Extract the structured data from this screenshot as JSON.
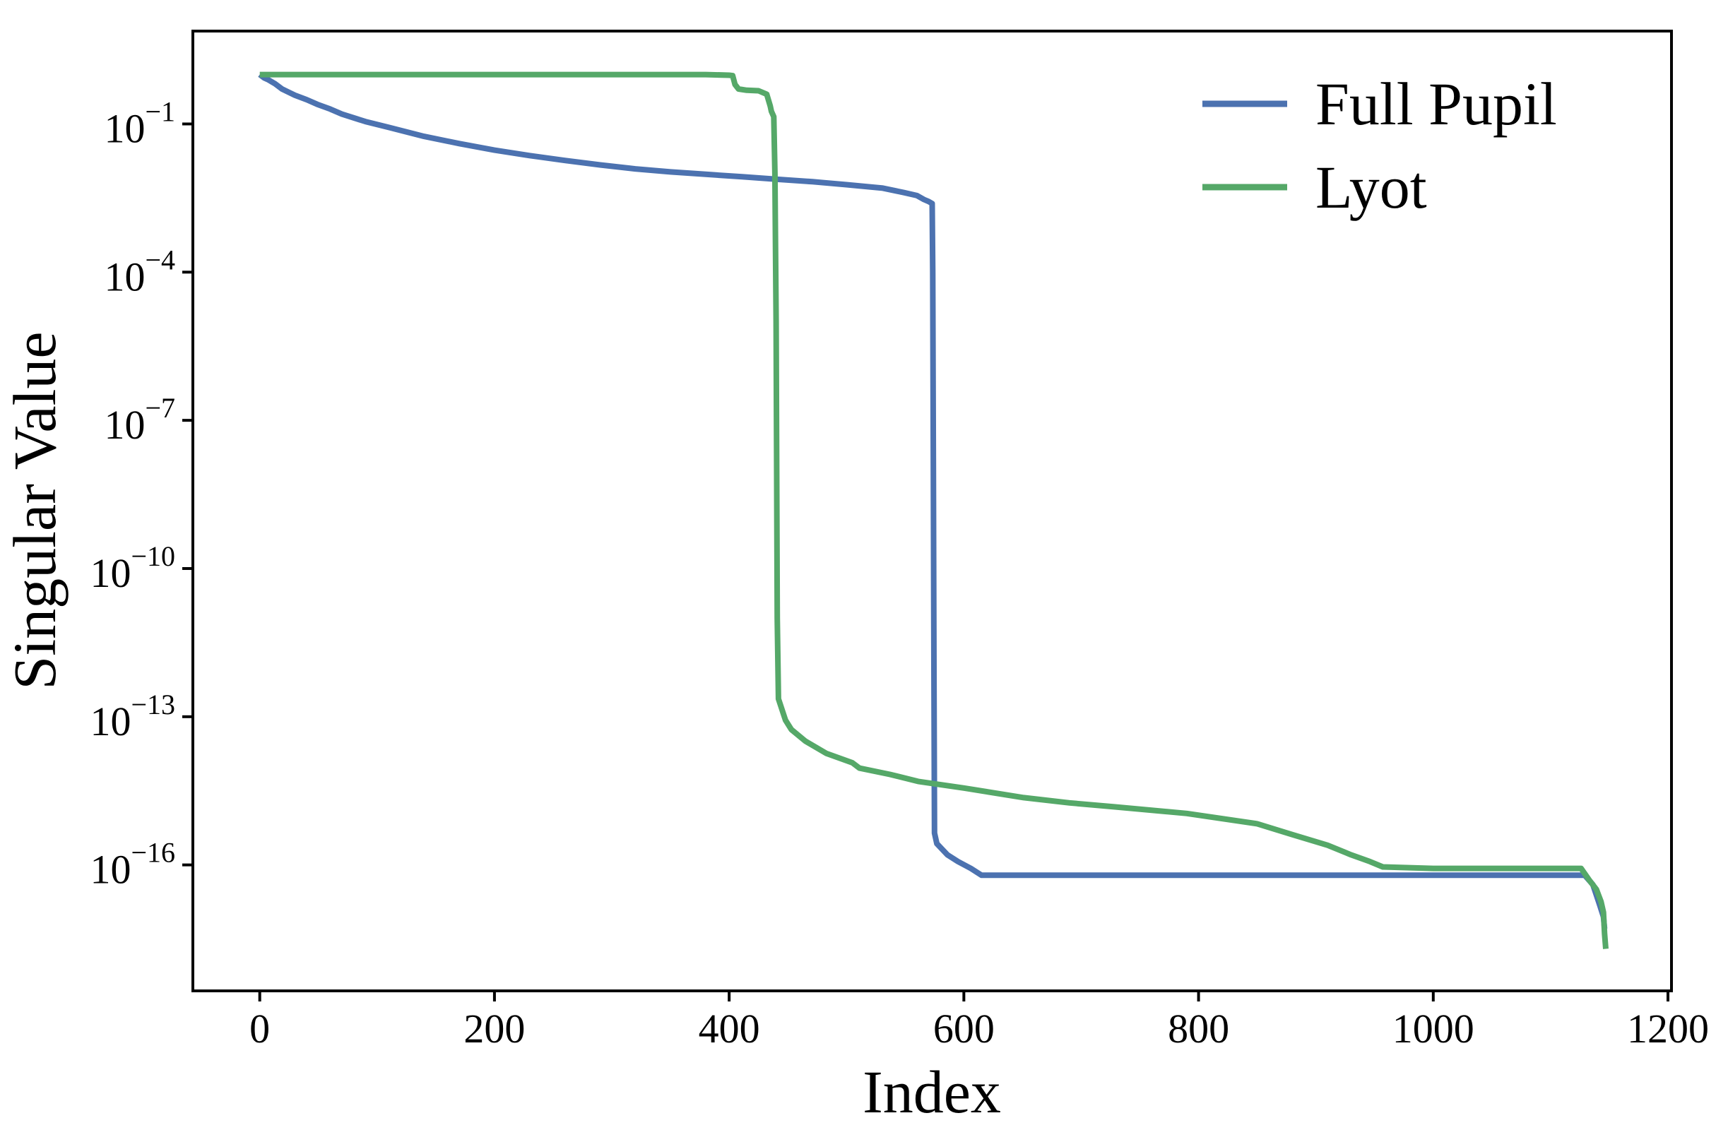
{
  "chart_data": {
    "type": "line",
    "title": "",
    "xlabel": "Index",
    "ylabel": "Singular Value",
    "x_scale": "linear",
    "y_scale": "log",
    "x_ticks": [
      0,
      200,
      400,
      600,
      800,
      1000,
      1200
    ],
    "y_tick_exponents": [
      -1,
      -4,
      -7,
      -10,
      -13,
      -16
    ],
    "xlim": [
      -57,
      1203
    ],
    "ylim_log10": [
      -18.55,
      0.88
    ],
    "grid": false,
    "legend_position": "upper-right",
    "background": "#ffffff",
    "series": [
      {
        "name": "Full Pupil",
        "color": "#4C72B0",
        "points": [
          [
            0,
            1.0
          ],
          [
            4,
            0.85
          ],
          [
            7,
            0.79
          ],
          [
            13,
            0.65
          ],
          [
            19,
            0.51
          ],
          [
            30,
            0.38
          ],
          [
            40,
            0.31
          ],
          [
            49,
            0.25
          ],
          [
            60,
            0.2
          ],
          [
            70,
            0.158
          ],
          [
            90,
            0.112
          ],
          [
            110,
            0.085
          ],
          [
            140,
            0.056
          ],
          [
            170,
            0.04
          ],
          [
            200,
            0.0295
          ],
          [
            230,
            0.0229
          ],
          [
            260,
            0.0182
          ],
          [
            290,
            0.0148
          ],
          [
            320,
            0.0123
          ],
          [
            350,
            0.0107
          ],
          [
            380,
            0.00955
          ],
          [
            411,
            0.00851
          ],
          [
            440,
            0.00759
          ],
          [
            471,
            0.00676
          ],
          [
            500,
            0.00589
          ],
          [
            531,
            0.00501
          ],
          [
            549,
            0.00407
          ],
          [
            560,
            0.00355
          ],
          [
            566,
            0.00295
          ],
          [
            570,
            0.00269
          ],
          [
            573,
            0.00245
          ],
          [
            573.5,
            0.0001
          ],
          [
            574,
            1e-08
          ],
          [
            574.5,
            1e-12
          ],
          [
            575,
            4.4e-16
          ],
          [
            577,
            2.7e-16
          ],
          [
            586,
            1.6e-16
          ],
          [
            595,
            1.17e-16
          ],
          [
            606,
            8.5e-17
          ],
          [
            615,
            6.2e-17
          ],
          [
            700,
            6.2e-17
          ],
          [
            800,
            6.2e-17
          ],
          [
            900,
            6.2e-17
          ],
          [
            1000,
            6.2e-17
          ],
          [
            1100,
            6.2e-17
          ],
          [
            1129,
            6.2e-17
          ],
          [
            1136,
            4e-17
          ],
          [
            1142,
            1.5e-17
          ],
          [
            1145,
            8.9e-18
          ],
          [
            1146,
            5.1e-18
          ]
        ]
      },
      {
        "name": "Lyot",
        "color": "#55A868",
        "points": [
          [
            0,
            1.0
          ],
          [
            100,
            1.0
          ],
          [
            200,
            1.0
          ],
          [
            300,
            1.0
          ],
          [
            380,
            1.0
          ],
          [
            400,
            0.97
          ],
          [
            403,
            0.95
          ],
          [
            405,
            0.63
          ],
          [
            408,
            0.51
          ],
          [
            415,
            0.48
          ],
          [
            425,
            0.47
          ],
          [
            432,
            0.4
          ],
          [
            435,
            0.23
          ],
          [
            436,
            0.18
          ],
          [
            438,
            0.14
          ],
          [
            439,
            0.01
          ],
          [
            440,
            1e-05
          ],
          [
            440.5,
            1e-08
          ],
          [
            441,
            1e-11
          ],
          [
            442,
            2.3e-13
          ],
          [
            448,
            8.5e-14
          ],
          [
            453,
            5.5e-14
          ],
          [
            465,
            3.2e-14
          ],
          [
            483,
            1.8e-14
          ],
          [
            505,
            1.17e-14
          ],
          [
            511,
            9.1e-15
          ],
          [
            537,
            6.8e-15
          ],
          [
            561,
            4.9e-15
          ],
          [
            600,
            3.6e-15
          ],
          [
            651,
            2.3e-15
          ],
          [
            690,
            1.8e-15
          ],
          [
            728,
            1.5e-15
          ],
          [
            790,
            1.1e-15
          ],
          [
            850,
            6.8e-16
          ],
          [
            880,
            4.1e-16
          ],
          [
            910,
            2.5e-16
          ],
          [
            930,
            1.6e-16
          ],
          [
            946,
            1.17e-16
          ],
          [
            957,
            9.1e-17
          ],
          [
            1000,
            8.5e-17
          ],
          [
            1060,
            8.5e-17
          ],
          [
            1126,
            8.5e-17
          ],
          [
            1133,
            4.9e-17
          ],
          [
            1139,
            3.2e-17
          ],
          [
            1143,
            1.8e-17
          ],
          [
            1145,
            1.1e-17
          ],
          [
            1146,
            4e-18
          ],
          [
            1147,
            2e-18
          ]
        ]
      }
    ]
  }
}
